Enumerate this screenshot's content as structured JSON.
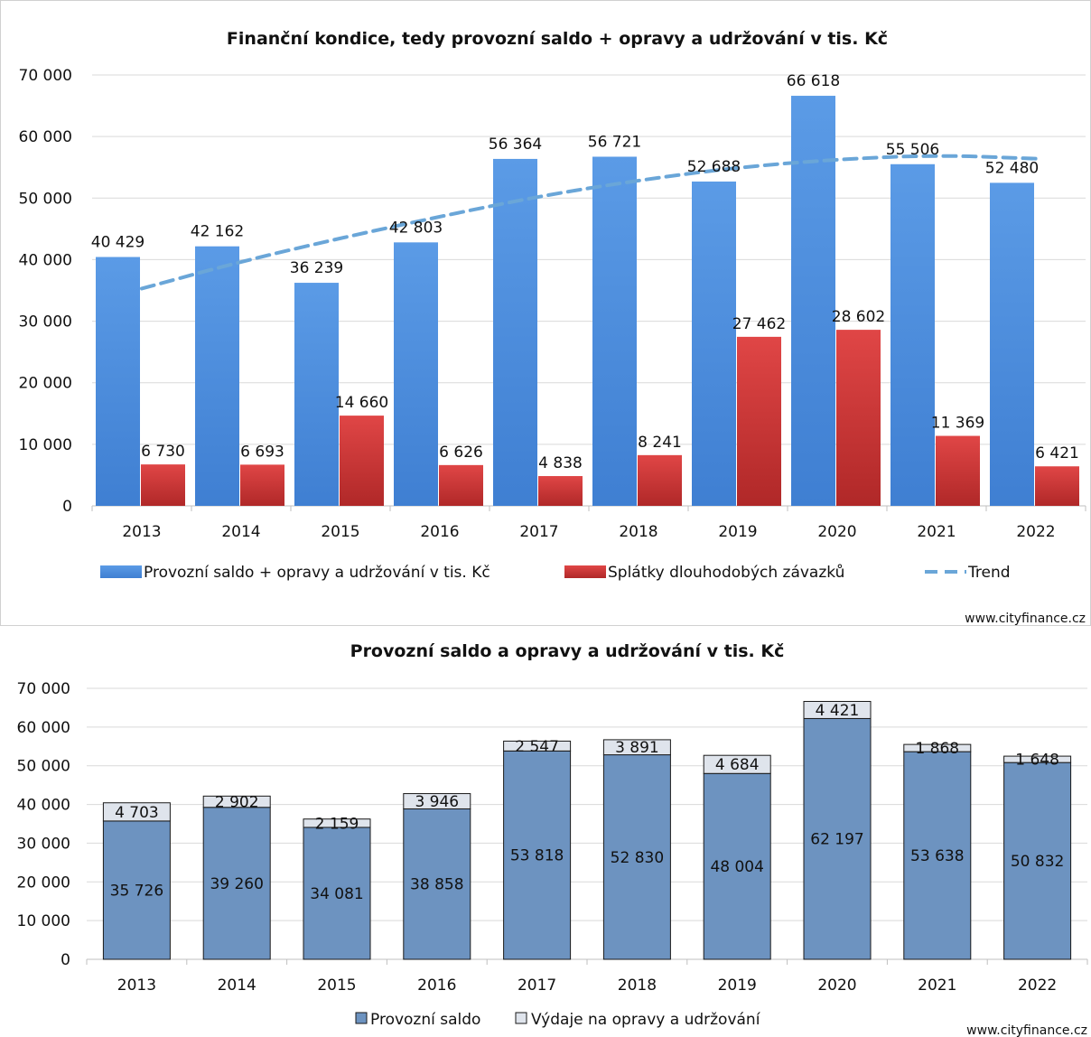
{
  "source_top": "www.cityfinance.cz",
  "source_bottom": "www.cityfinance.cz",
  "chart_data": [
    {
      "type": "bar",
      "title": "Finanční kondice, tedy provozní saldo + opravy a udržování v tis. Kč",
      "categories": [
        "2013",
        "2014",
        "2015",
        "2016",
        "2017",
        "2018",
        "2019",
        "2020",
        "2021",
        "2022"
      ],
      "y_ticks": [
        "0",
        "10 000",
        "20 000",
        "30 000",
        "40 000",
        "50 000",
        "60 000",
        "70 000"
      ],
      "ylim": [
        0,
        70000
      ],
      "grid": true,
      "legend_position": "bottom",
      "series": [
        {
          "name": "Provozní saldo + opravy a udržování v tis. Kč",
          "color": "#4f8fdf",
          "values": [
            40429,
            42162,
            36239,
            42803,
            56364,
            56721,
            52688,
            66618,
            55506,
            52480
          ],
          "labels": [
            "40 429",
            "42 162",
            "36 239",
            "42 803",
            "56 364",
            "56 721",
            "52 688",
            "66 618",
            "55 506",
            "52 480"
          ]
        },
        {
          "name": "Splátky dlouhodobých závazků",
          "color": "#d63a3a",
          "values": [
            6730,
            6693,
            14660,
            6626,
            4838,
            8241,
            27462,
            28602,
            11369,
            6421
          ],
          "labels": [
            "6 730",
            "6 693",
            "14 660",
            "6 626",
            "4 838",
            "8 241",
            "27 462",
            "28 602",
            "11 369",
            "6 421"
          ]
        },
        {
          "name": "Trend",
          "type": "line",
          "style": "dashed",
          "color": "#6aa6d8",
          "values": [
            35300,
            39700,
            43500,
            47000,
            50300,
            52900,
            55000,
            56300,
            57000,
            56400
          ]
        }
      ]
    },
    {
      "type": "bar",
      "stacked": true,
      "title": "Provozní saldo a opravy a udržování v tis. Kč",
      "categories": [
        "2013",
        "2014",
        "2015",
        "2016",
        "2017",
        "2018",
        "2019",
        "2020",
        "2021",
        "2022"
      ],
      "y_ticks": [
        "0",
        "10 000",
        "20 000",
        "30 000",
        "40 000",
        "50 000",
        "60 000",
        "70 000"
      ],
      "ylim": [
        0,
        70000
      ],
      "grid": true,
      "legend_position": "bottom",
      "series": [
        {
          "name": "Provozní saldo",
          "color": "#6d93c0",
          "values": [
            35726,
            39260,
            34081,
            38858,
            53818,
            52830,
            48004,
            62197,
            53638,
            50832
          ],
          "labels": [
            "35 726",
            "39 260",
            "34 081",
            "38 858",
            "53 818",
            "52 830",
            "48 004",
            "62 197",
            "53 638",
            "50 832"
          ]
        },
        {
          "name": "Výdaje na opravy a udržování",
          "color": "#dfe4ec",
          "values": [
            4703,
            2902,
            2159,
            3946,
            2547,
            3891,
            4684,
            4421,
            1868,
            1648
          ],
          "labels": [
            "4 703",
            "2 902",
            "2 159",
            "3 946",
            "2 547",
            "3 891",
            "4 684",
            "4 421",
            "1 868",
            "1 648"
          ]
        }
      ]
    }
  ]
}
